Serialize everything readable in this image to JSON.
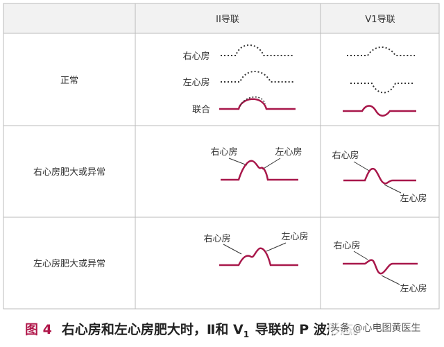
{
  "table": {
    "header": {
      "col_lead_ii": "II导联",
      "col_lead_v1": "V1导联"
    },
    "rows": [
      {
        "label": "正常"
      },
      {
        "label": "右心房肥大或异常"
      },
      {
        "label": "左心房肥大或异常"
      }
    ],
    "normal_labels": {
      "right_atrium": "右心房",
      "left_atrium": "左心房",
      "combined": "联合"
    },
    "annotations": {
      "right_atrium": "右心房",
      "left_atrium": "左心房"
    }
  },
  "caption": {
    "figure": "图 4",
    "text_before": "右心房和左心房肥大时，Ⅱ和 V",
    "subscript": "1",
    "text_after": " 导联的 P 波形态。"
  },
  "watermark": "头条 @心电图黄医生",
  "colors": {
    "waveform": "#a8174a",
    "grid": "#bbbbbb",
    "header_bg": "#f2f2f2",
    "dotted": "#333333"
  }
}
